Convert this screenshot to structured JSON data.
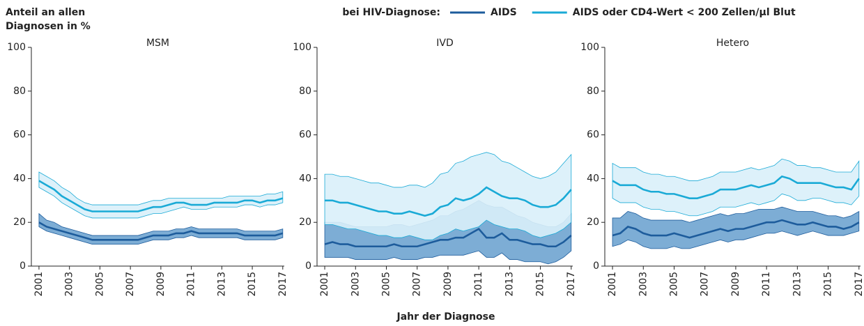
{
  "y_label": [
    "Anteil an allen",
    "Diagnosen in %"
  ],
  "x_label": "Jahr der Diagnose",
  "legend_title": "bei HIV-Diagnose:",
  "chart_data": [
    {
      "type": "band-line",
      "title": "MSM",
      "x": [
        2001,
        2001.5,
        2002,
        2002.5,
        2003,
        2003.5,
        2004,
        2004.5,
        2005,
        2005.5,
        2006,
        2006.5,
        2007,
        2007.5,
        2008,
        2008.5,
        2009,
        2009.5,
        2010,
        2010.5,
        2011,
        2011.5,
        2012,
        2012.5,
        2013,
        2013.5,
        2014,
        2014.5,
        2015,
        2015.5,
        2016,
        2016.5,
        2017
      ],
      "xlim": [
        2000.5,
        2017.1
      ],
      "xticks": [
        2001,
        2003,
        2005,
        2007,
        2009,
        2011,
        2013,
        2015,
        2017
      ],
      "ylim": [
        0,
        100
      ],
      "yticks": [
        0,
        20,
        40,
        60,
        80,
        100
      ],
      "series": [
        {
          "name": "AIDS",
          "color": "#1d5c9c",
          "band_color": "#6fa4d0",
          "values": [
            20,
            18,
            17,
            16,
            15,
            14,
            13,
            12,
            12,
            12,
            12,
            12,
            12,
            12,
            13,
            14,
            14,
            14,
            15,
            15,
            16,
            15,
            15,
            15,
            15,
            15,
            15,
            14,
            14,
            14,
            14,
            14,
            15
          ],
          "upper": [
            24,
            21,
            20,
            18,
            17,
            16,
            15,
            14,
            14,
            14,
            14,
            14,
            14,
            14,
            15,
            16,
            16,
            16,
            17,
            17,
            18,
            17,
            17,
            17,
            17,
            17,
            17,
            16,
            16,
            16,
            16,
            16,
            17
          ],
          "lower": [
            18,
            16,
            15,
            14,
            13,
            12,
            11,
            10,
            10,
            10,
            10,
            10,
            10,
            10,
            11,
            12,
            12,
            12,
            13,
            13,
            14,
            13,
            13,
            13,
            13,
            13,
            13,
            12,
            12,
            12,
            12,
            12,
            13
          ]
        },
        {
          "name": "AIDS oder CD4-Wert < 200 Zellen/µl Blut",
          "color": "#1aaad6",
          "band_color": "#d9f0f9",
          "values": [
            39,
            37,
            35,
            32,
            30,
            28,
            26,
            25,
            25,
            25,
            25,
            25,
            25,
            25,
            26,
            27,
            27,
            28,
            29,
            29,
            28,
            28,
            28,
            29,
            29,
            29,
            29,
            30,
            30,
            29,
            30,
            30,
            31
          ],
          "upper": [
            43,
            41,
            39,
            36,
            34,
            31,
            29,
            28,
            28,
            28,
            28,
            28,
            28,
            28,
            29,
            30,
            30,
            31,
            31,
            31,
            31,
            31,
            31,
            31,
            31,
            32,
            32,
            32,
            32,
            32,
            33,
            33,
            34
          ],
          "lower": [
            36,
            34,
            32,
            29,
            27,
            25,
            23,
            22,
            22,
            22,
            22,
            22,
            22,
            22,
            23,
            24,
            24,
            25,
            26,
            27,
            26,
            26,
            26,
            27,
            27,
            27,
            27,
            28,
            28,
            27,
            28,
            28,
            29
          ]
        }
      ]
    },
    {
      "type": "band-line",
      "title": "IVD",
      "x": [
        2001,
        2001.5,
        2002,
        2002.5,
        2003,
        2003.5,
        2004,
        2004.5,
        2005,
        2005.5,
        2006,
        2006.5,
        2007,
        2007.5,
        2008,
        2008.5,
        2009,
        2009.5,
        2010,
        2010.5,
        2011,
        2011.5,
        2012,
        2012.5,
        2013,
        2013.5,
        2014,
        2014.5,
        2015,
        2015.5,
        2016,
        2016.5,
        2017
      ],
      "xlim": [
        2000.5,
        2017.1
      ],
      "xticks": [
        2001,
        2003,
        2005,
        2007,
        2009,
        2011,
        2013,
        2015,
        2017
      ],
      "ylim": [
        0,
        100
      ],
      "yticks": [
        0,
        20,
        40,
        60,
        80,
        100
      ],
      "series": [
        {
          "name": "AIDS",
          "color": "#1d5c9c",
          "band_color": "#6fa4d0",
          "values": [
            10,
            11,
            10,
            10,
            9,
            9,
            9,
            9,
            9,
            10,
            9,
            9,
            9,
            10,
            11,
            12,
            12,
            13,
            13,
            15,
            17,
            13,
            13,
            15,
            12,
            12,
            11,
            10,
            10,
            9,
            9,
            11,
            14
          ],
          "upper": [
            20,
            20,
            20,
            19,
            18,
            18,
            18,
            18,
            18,
            19,
            19,
            18,
            19,
            20,
            21,
            23,
            23,
            25,
            26,
            28,
            30,
            28,
            27,
            27,
            25,
            23,
            22,
            20,
            19,
            18,
            18,
            20,
            24
          ],
          "lower": [
            4,
            4,
            4,
            4,
            3,
            3,
            3,
            3,
            3,
            4,
            3,
            3,
            3,
            4,
            4,
            5,
            5,
            5,
            5,
            6,
            7,
            4,
            4,
            6,
            3,
            3,
            2,
            2,
            2,
            1,
            2,
            4,
            7
          ]
        },
        {
          "name": "AIDS oder CD4-Wert < 200 Zellen/µl Blut",
          "color": "#1aaad6",
          "band_color": "#d9f0f9",
          "values": [
            30,
            30,
            29,
            29,
            28,
            27,
            26,
            25,
            25,
            24,
            24,
            25,
            24,
            23,
            24,
            27,
            28,
            31,
            30,
            31,
            33,
            36,
            34,
            32,
            31,
            31,
            30,
            28,
            27,
            27,
            28,
            31,
            35
          ],
          "upper": [
            42,
            42,
            41,
            41,
            40,
            39,
            38,
            38,
            37,
            36,
            36,
            37,
            37,
            36,
            38,
            42,
            43,
            47,
            48,
            50,
            51,
            52,
            51,
            48,
            47,
            45,
            43,
            41,
            40,
            41,
            43,
            47,
            51
          ],
          "lower": [
            19,
            19,
            18,
            17,
            17,
            16,
            15,
            14,
            14,
            13,
            13,
            14,
            13,
            12,
            12,
            14,
            15,
            17,
            16,
            17,
            18,
            21,
            19,
            18,
            17,
            17,
            16,
            14,
            13,
            14,
            15,
            17,
            20
          ]
        }
      ]
    },
    {
      "type": "band-line",
      "title": "Hetero",
      "x": [
        2001,
        2001.5,
        2002,
        2002.5,
        2003,
        2003.5,
        2004,
        2004.5,
        2005,
        2005.5,
        2006,
        2006.5,
        2007,
        2007.5,
        2008,
        2008.5,
        2009,
        2009.5,
        2010,
        2010.5,
        2011,
        2011.5,
        2012,
        2012.5,
        2013,
        2013.5,
        2014,
        2014.5,
        2015,
        2015.5,
        2016,
        2016.5,
        2017
      ],
      "xlim": [
        2000.5,
        2017.1
      ],
      "xticks": [
        2001,
        2003,
        2005,
        2007,
        2009,
        2011,
        2013,
        2015,
        2017
      ],
      "ylim": [
        0,
        100
      ],
      "yticks": [
        0,
        20,
        40,
        60,
        80,
        100
      ],
      "series": [
        {
          "name": "AIDS",
          "color": "#1d5c9c",
          "band_color": "#6fa4d0",
          "values": [
            14,
            15,
            18,
            17,
            15,
            14,
            14,
            14,
            15,
            14,
            13,
            14,
            15,
            16,
            17,
            16,
            17,
            17,
            18,
            19,
            20,
            20,
            21,
            20,
            19,
            19,
            20,
            19,
            18,
            18,
            17,
            18,
            20
          ],
          "upper": [
            22,
            22,
            25,
            24,
            22,
            21,
            21,
            21,
            21,
            21,
            20,
            21,
            22,
            23,
            24,
            23,
            24,
            24,
            25,
            26,
            26,
            26,
            27,
            26,
            25,
            25,
            25,
            24,
            23,
            23,
            22,
            23,
            25
          ],
          "lower": [
            9,
            10,
            12,
            11,
            9,
            8,
            8,
            8,
            9,
            8,
            8,
            9,
            10,
            11,
            12,
            11,
            12,
            12,
            13,
            14,
            15,
            15,
            16,
            15,
            14,
            15,
            16,
            15,
            14,
            14,
            14,
            15,
            16
          ]
        },
        {
          "name": "AIDS oder CD4-Wert < 200 Zellen/µl Blut",
          "color": "#1aaad6",
          "band_color": "#d9f0f9",
          "values": [
            39,
            37,
            37,
            37,
            35,
            34,
            34,
            33,
            33,
            32,
            31,
            31,
            32,
            33,
            35,
            35,
            35,
            36,
            37,
            36,
            37,
            38,
            41,
            40,
            38,
            38,
            38,
            38,
            37,
            36,
            36,
            35,
            40
          ],
          "upper": [
            47,
            45,
            45,
            45,
            43,
            42,
            42,
            41,
            41,
            40,
            39,
            39,
            40,
            41,
            43,
            43,
            43,
            44,
            45,
            44,
            45,
            46,
            49,
            48,
            46,
            46,
            45,
            45,
            44,
            43,
            43,
            43,
            48
          ],
          "lower": [
            31,
            29,
            29,
            29,
            27,
            26,
            26,
            25,
            25,
            24,
            23,
            23,
            24,
            25,
            27,
            27,
            27,
            28,
            29,
            28,
            29,
            30,
            33,
            32,
            30,
            30,
            31,
            31,
            30,
            29,
            29,
            28,
            32
          ]
        }
      ]
    }
  ]
}
